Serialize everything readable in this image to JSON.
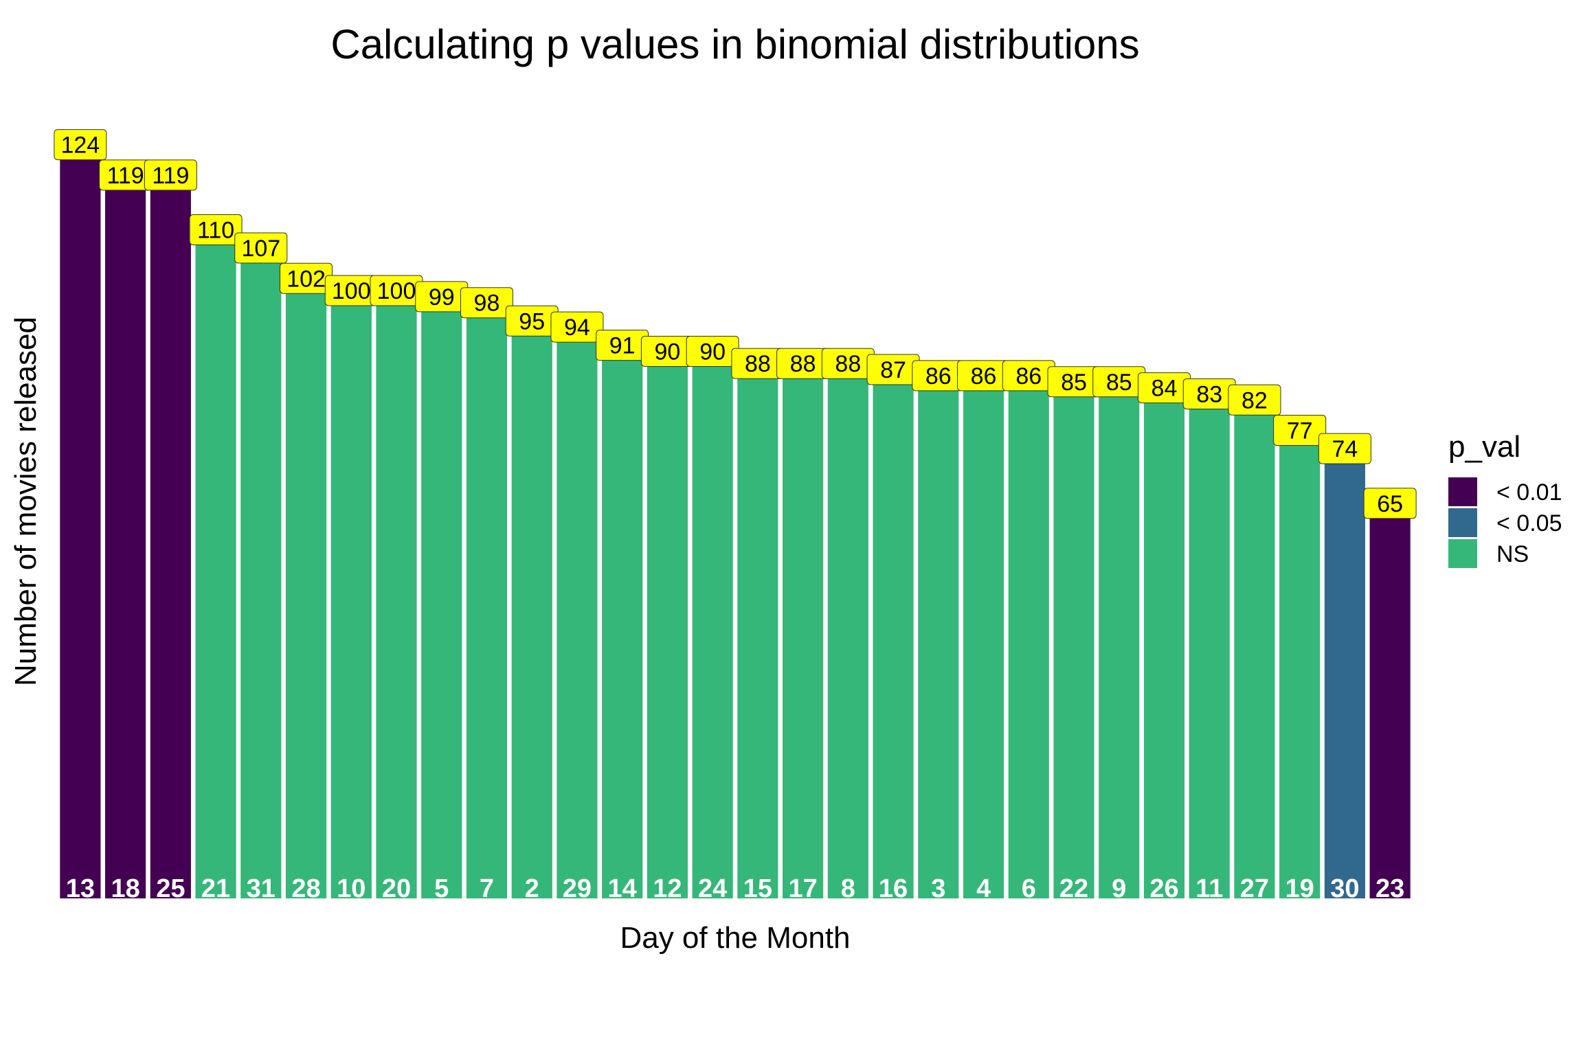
{
  "chart_data": {
    "type": "bar",
    "title": "Calculating p values in binomial distributions",
    "xlabel": "Day of the Month",
    "ylabel": "Number of movies released",
    "ylim": [
      0,
      130
    ],
    "grid": false,
    "legend_position": "right",
    "legend": {
      "title": "p_val",
      "entries": [
        {
          "label": "< 0.01",
          "color": "#440154"
        },
        {
          "label": "< 0.05",
          "color": "#31688E"
        },
        {
          "label": "NS",
          "color": "#35B779"
        }
      ]
    },
    "categories": [
      "13",
      "18",
      "25",
      "21",
      "31",
      "28",
      "10",
      "20",
      "5",
      "7",
      "2",
      "29",
      "14",
      "12",
      "24",
      "15",
      "17",
      "8",
      "16",
      "3",
      "4",
      "6",
      "22",
      "9",
      "26",
      "11",
      "27",
      "19",
      "30",
      "23"
    ],
    "values": [
      124,
      119,
      119,
      110,
      107,
      102,
      100,
      100,
      99,
      98,
      95,
      94,
      91,
      90,
      90,
      88,
      88,
      88,
      87,
      86,
      86,
      86,
      85,
      85,
      84,
      83,
      82,
      77,
      74,
      65
    ],
    "groups": [
      "< 0.01",
      "< 0.01",
      "< 0.01",
      "NS",
      "NS",
      "NS",
      "NS",
      "NS",
      "NS",
      "NS",
      "NS",
      "NS",
      "NS",
      "NS",
      "NS",
      "NS",
      "NS",
      "NS",
      "NS",
      "NS",
      "NS",
      "NS",
      "NS",
      "NS",
      "NS",
      "NS",
      "NS",
      "NS",
      "< 0.05",
      "< 0.01"
    ],
    "data_label_fill": "#FFFF00"
  }
}
